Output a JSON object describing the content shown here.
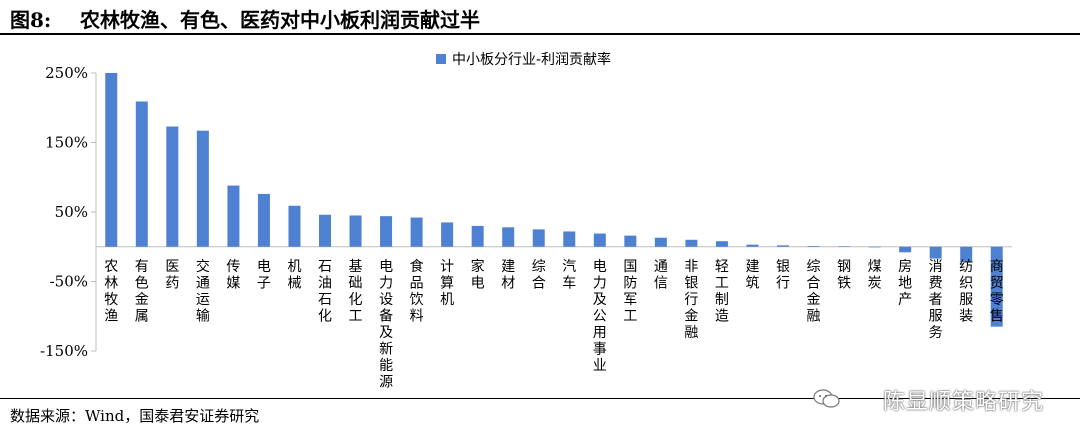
{
  "figure": {
    "number": "图8:",
    "title": "农林牧渔、有色、医药对中小板利润贡献过半"
  },
  "source": "数据来源：Wind，国泰君安证券研究",
  "watermark": "陈显顺策略研究",
  "colors": {
    "bar": "#4f81d3",
    "axis": "#bfbfbf",
    "gridline": "#d9d9d9"
  },
  "chart_data": {
    "type": "bar",
    "title": "",
    "xlabel": "",
    "ylabel": "",
    "ylim": [
      -150,
      250
    ],
    "yticks": [
      250,
      150,
      50,
      -50,
      -150
    ],
    "ytick_labels": [
      "250%",
      "150%",
      "50%",
      "-50%",
      "-150%"
    ],
    "legend": {
      "position": "top",
      "label": "中小板分行业-利润贡献率"
    },
    "grid": false,
    "categories": [
      "农林牧渔",
      "有色金属",
      "医药",
      "交通运输",
      "传媒",
      "电子",
      "机械",
      "石油石化",
      "基础化工",
      "电力设备及新能源",
      "食品饮料",
      "计算机",
      "家电",
      "建材",
      "综合",
      "汽车",
      "电力及公用事业",
      "国防军工",
      "通信",
      "非银行金融",
      "轻工制造",
      "建筑",
      "银行",
      "综合金融",
      "钢铁",
      "煤炭",
      "房地产",
      "消费者服务",
      "纺织服装",
      "商贸零售"
    ],
    "series": [
      {
        "name": "中小板分行业-利润贡献率",
        "values": [
          250,
          209,
          173,
          167,
          88,
          76,
          59,
          46,
          45,
          44,
          42,
          35,
          30,
          28,
          25,
          22,
          19,
          16,
          13,
          10,
          8,
          3,
          2,
          1,
          0.5,
          0,
          -8,
          -17,
          -22,
          -115
        ]
      }
    ]
  }
}
